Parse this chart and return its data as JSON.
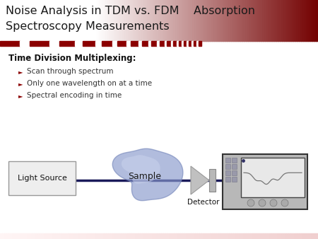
{
  "title_line1": "Noise Analysis in TDM vs. FDM    Absorption",
  "title_line2": "Spectroscopy Measurements",
  "title_color": "#1a1a1a",
  "title_fontsize": 11.5,
  "section_title": "Time Division Multiplexing:",
  "section_title_fontsize": 8.5,
  "bullets": [
    "Scan through spectrum",
    "Only one wavelength on at a time",
    "Spectral encoding in time"
  ],
  "bullet_fontsize": 7.5,
  "bullet_color": "#333333",
  "bullet_arrow_color": "#8b0000",
  "light_source_label": "Light Source",
  "sample_label": "Sample",
  "detector_label": "Detector",
  "box_bg": "#eeeeee",
  "box_edge": "#999999",
  "sample_fill_light": "#b0bbd8",
  "sample_fill_dark": "#8899cc",
  "line_color": "#1a1a5a",
  "line_width": 2.5,
  "arrow_fill": "#bbbbbb",
  "osc_bg": "#b8b8b8",
  "osc_screen_bg": "#d0d0d0",
  "bg_color": "#ffffff",
  "header_stripe_dark": "#8b0000",
  "header_stripe_light": "#ffffff"
}
